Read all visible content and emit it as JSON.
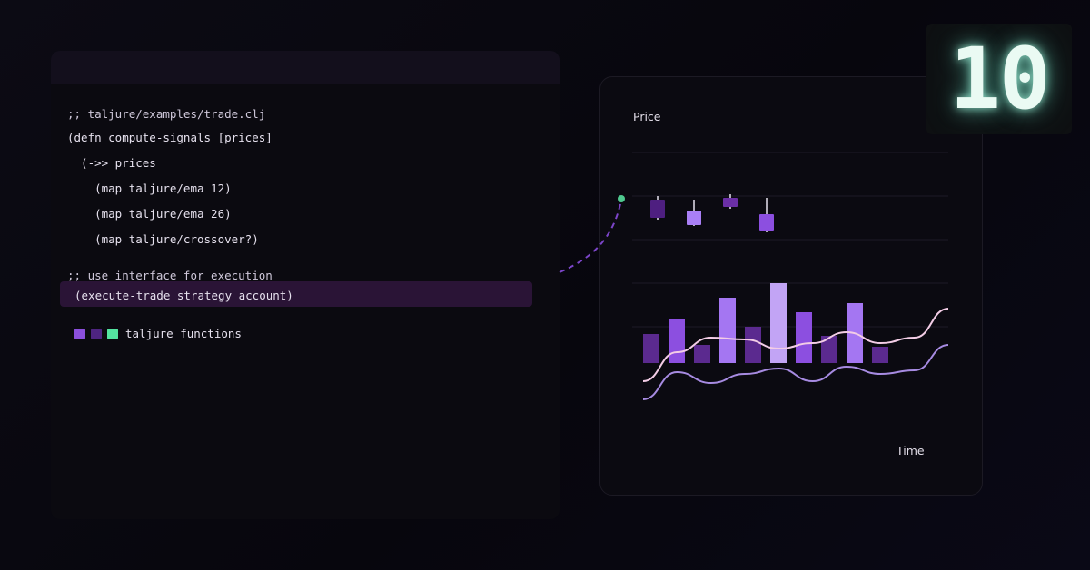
{
  "code": {
    "lines": [
      ";; taljure/examples/trade.clj",
      "(defn compute-signals [prices]",
      "  (->> prices",
      "    (map taljure/ema 12)",
      "    (map taljure/ema 26)",
      "    (map taljure/crossover?)",
      ";; use interface for execution"
    ],
    "highlighted": "(execute-trade strategy account)"
  },
  "legend": {
    "label": "taljure functions",
    "colors": [
      "#8b4fdc",
      "#4e2480",
      "#54e3a0"
    ]
  },
  "chart_data": {
    "type": "bar",
    "ylabel": "Price",
    "xlabel": "Time",
    "bars": [
      {
        "value": 32,
        "color": "#5b2a8f"
      },
      {
        "value": 48,
        "color": "#8c4fe0"
      },
      {
        "value": 20,
        "color": "#5b2a8f"
      },
      {
        "value": 72,
        "color": "#a476f2"
      },
      {
        "value": 40,
        "color": "#5b2a8f"
      },
      {
        "value": 88,
        "color": "#c2a4f5"
      },
      {
        "value": 56,
        "color": "#8c4fe0"
      },
      {
        "value": 30,
        "color": "#5b2a8f"
      },
      {
        "value": 66,
        "color": "#a476f2"
      },
      {
        "value": 18,
        "color": "#5b2a8f"
      }
    ],
    "candles": [
      {
        "open": 180,
        "close": 160,
        "high": 184,
        "low": 158,
        "color": "#4e1f80"
      },
      {
        "open": 152,
        "close": 168,
        "high": 180,
        "low": 151,
        "color": "#a97ff5"
      },
      {
        "open": 172,
        "close": 182,
        "high": 186,
        "low": 170,
        "color": "#6b2fa6"
      },
      {
        "open": 146,
        "close": 164,
        "high": 182,
        "low": 144,
        "color": "#8c4fe0"
      }
    ],
    "lines": [
      {
        "color": "#f3cde6",
        "points": [
          -20,
          12,
          28,
          26,
          16,
          22,
          34,
          22,
          28,
          60
        ]
      },
      {
        "color": "#a78be2",
        "points": [
          -40,
          -10,
          -22,
          -12,
          -6,
          -20,
          -4,
          -12,
          -8,
          20
        ]
      }
    ],
    "grid": true
  },
  "badge": {
    "text": "10"
  }
}
